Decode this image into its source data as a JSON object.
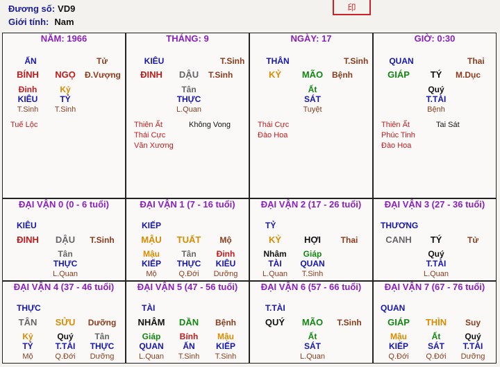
{
  "header": {
    "duong_so_label": "Đương số:",
    "duong_so_value": "VD9",
    "gioi_tinh_label": "Giới tính:",
    "gioi_tinh_value": "Nam",
    "stamp_text": "印"
  },
  "colors": {
    "border": "#222222",
    "title": "#8a1fc0",
    "blue": "#1515b0",
    "red": "#c41a1a",
    "green": "#118811",
    "orange": "#d98c00"
  },
  "pillars": [
    {
      "title": "NĂM: 1966",
      "god": "ẤN",
      "can": "BÍNH",
      "chi": "NGỌ",
      "top_right": "Tử",
      "stage": "Đ.Vượng",
      "hidden": [
        {
          "stem": "Đinh",
          "god": "KIÊU",
          "sub": "T.Sinh"
        },
        {
          "stem": "Kỷ",
          "god": "TỶ",
          "sub": "T.Sinh"
        }
      ],
      "stars_left": [
        "Tuế Lộc"
      ],
      "stars_right": []
    },
    {
      "title": "THÁNG: 9",
      "god": "KIÊU",
      "can": "ĐINH",
      "chi": "DẬU",
      "top_right": "T.Sinh",
      "stage": "T.Sinh",
      "hidden": [
        {
          "stem": "Tân",
          "god": "THỰC",
          "sub": "L.Quan"
        }
      ],
      "stars_left": [
        "Thiên Ất",
        "Thái Cực",
        "Văn Xương"
      ],
      "stars_right": [
        "Không Vong"
      ]
    },
    {
      "title": "NGÀY: 17",
      "god": "THÂN",
      "can": "KỶ",
      "chi": "MÃO",
      "top_right": "T.Sinh",
      "stage": "Bệnh",
      "hidden": [
        {
          "stem": "Ất",
          "god": "SÁT",
          "sub": "Tuyệt"
        }
      ],
      "stars_left": [
        "Thái Cực",
        "Đào Hoa"
      ],
      "stars_right": []
    },
    {
      "title": "GIỜ: 0:30",
      "god": "QUAN",
      "can": "GIÁP",
      "chi": "TÝ",
      "top_right": "Thai",
      "stage": "M.Dục",
      "hidden": [
        {
          "stem": "Quý",
          "god": "T.TÀI",
          "sub": "Bệnh"
        }
      ],
      "stars_left": [
        "Thiên Ất",
        "Phúc Tinh",
        "Đào Hoa"
      ],
      "stars_right": [
        "Tai Sát"
      ]
    }
  ],
  "dai_van": [
    {
      "title": "ĐẠI VẬN 0 (0 - 6 tuổi)",
      "god": "KIÊU",
      "can": "ĐINH",
      "chi": "DẬU",
      "stage": "T.Sinh",
      "hidden": [
        {
          "stem": "Tân",
          "god": "THỰC",
          "sub": "L.Quan"
        }
      ]
    },
    {
      "title": "ĐẠI VẬN 1 (7 - 16 tuổi)",
      "god": "KIẾP",
      "can": "MẬU",
      "chi": "TUẤT",
      "stage": "Mộ",
      "hidden": [
        {
          "stem": "Mậu",
          "god": "KIẾP",
          "sub": "Mộ"
        },
        {
          "stem": "Tân",
          "god": "THỰC",
          "sub": "Q.Đới"
        },
        {
          "stem": "Đinh",
          "god": "KIÊU",
          "sub": "Dưỡng"
        }
      ]
    },
    {
      "title": "ĐẠI VẬN 2 (17 - 26 tuổi)",
      "god": "TỶ",
      "can": "KỶ",
      "chi": "HỢI",
      "stage": "Thai",
      "hidden": [
        {
          "stem": "Nhâm",
          "god": "TÀI",
          "sub": "L.Quan"
        },
        {
          "stem": "Giáp",
          "god": "QUAN",
          "sub": "T.Sinh"
        }
      ]
    },
    {
      "title": "ĐẠI VẬN 3 (27 - 36 tuổi)",
      "god": "THƯƠNG",
      "can": "CANH",
      "chi": "TÝ",
      "stage": "Tử",
      "hidden": [
        {
          "stem": "Quý",
          "god": "T.TÀI",
          "sub": "L.Quan"
        }
      ]
    },
    {
      "title": "ĐẠI VẬN 4 (37 - 46 tuổi)",
      "god": "THỰC",
      "can": "TÂN",
      "chi": "SỬU",
      "stage": "Dưỡng",
      "hidden": [
        {
          "stem": "Kỷ",
          "god": "TỶ",
          "sub": "Mộ"
        },
        {
          "stem": "Quý",
          "god": "T.TÀI",
          "sub": "Q.Đới"
        },
        {
          "stem": "Tân",
          "god": "THỰC",
          "sub": "Dưỡng"
        }
      ]
    },
    {
      "title": "ĐẠI VẬN 5 (47 - 56 tuổi)",
      "god": "TÀI",
      "can": "NHÂM",
      "chi": "DẦN",
      "stage": "Bệnh",
      "hidden": [
        {
          "stem": "Giáp",
          "god": "QUAN",
          "sub": "L.Quan"
        },
        {
          "stem": "Bính",
          "god": "ẤN",
          "sub": "T.Sinh"
        },
        {
          "stem": "Mậu",
          "god": "KIẾP",
          "sub": "T.Sinh"
        }
      ]
    },
    {
      "title": "ĐẠI VẬN 6 (57 - 66 tuổi)",
      "god": "T.TÀI",
      "can": "QUÝ",
      "chi": "MÃO",
      "stage": "T.Sinh",
      "hidden": [
        {
          "stem": "Ất",
          "god": "SÁT",
          "sub": "L.Quan"
        }
      ]
    },
    {
      "title": "ĐẠI VẬN 7 (67 - 76 tuổi)",
      "god": "QUAN",
      "can": "GIÁP",
      "chi": "THÌN",
      "stage": "Suy",
      "hidden": [
        {
          "stem": "Mậu",
          "god": "KIẾP",
          "sub": "Q.Đới"
        },
        {
          "stem": "Ất",
          "god": "SÁT",
          "sub": "Q.Đới"
        },
        {
          "stem": "Quý",
          "god": "T.TÀI",
          "sub": "Dưỡng"
        }
      ]
    }
  ]
}
